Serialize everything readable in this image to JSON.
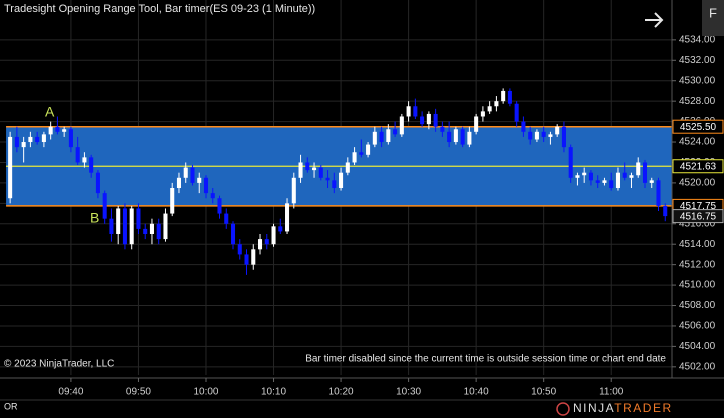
{
  "chart_data": {
    "type": "candlestick",
    "title": "Tradesight Opening Range Tool, Bar timer(ES 09-23 (1 Minute))",
    "x": [
      571,
      572,
      573,
      574,
      575,
      576,
      577,
      578,
      579,
      580,
      581,
      582,
      583,
      584,
      585,
      586,
      587,
      588,
      589,
      590,
      591,
      592,
      593,
      594,
      595,
      596,
      597,
      598,
      599,
      600,
      601,
      602,
      603,
      604,
      605,
      606,
      607,
      608,
      609,
      610,
      611,
      612,
      613,
      614,
      615,
      616,
      617,
      618,
      619,
      620,
      621,
      622,
      623,
      624,
      625,
      626,
      627,
      628,
      629,
      630,
      631,
      632,
      633,
      634,
      635,
      636,
      637,
      638,
      639,
      640,
      641,
      642,
      643,
      644,
      645,
      646,
      647,
      648,
      649,
      650,
      651,
      652,
      653,
      654,
      655,
      656,
      657,
      658,
      659,
      660,
      661,
      662,
      663,
      664,
      665,
      666,
      667,
      668
    ],
    "open": [
      4518.5,
      4524.5,
      4523.5,
      4524,
      4524.5,
      4524,
      4524.75,
      4525.5,
      4525,
      4525.25,
      4523.5,
      4522,
      4522.5,
      4521,
      4519,
      4516.5,
      4515,
      4517.5,
      4514,
      4517.5,
      4515.5,
      4515,
      4516,
      4514.5,
      4517,
      4519.5,
      4520.5,
      4521.5,
      4520,
      4520.5,
      4519,
      4518.5,
      4517,
      4516,
      4514,
      4513,
      4512,
      4513.5,
      4514.5,
      4514,
      4515.75,
      4515.25,
      4518,
      4520.5,
      4522,
      4521.25,
      4521.5,
      4520.5,
      4520.25,
      4519.5,
      4521,
      4522,
      4523,
      4522.75,
      4523.75,
      4525,
      4524,
      4525.25,
      4524.75,
      4526.5,
      4527.5,
      4526.5,
      4525.75,
      4526.75,
      4525.5,
      4525,
      4524,
      4525.25,
      4523.75,
      4525,
      4526.5,
      4527,
      4527.5,
      4528,
      4529,
      4527.75,
      4526,
      4525,
      4524.25,
      4525,
      4524.5,
      4524.75,
      4525.5,
      4523.5,
      4520.5,
      4520.75,
      4521,
      4520.25,
      4520,
      4520.25,
      4519.5,
      4521,
      4520.5,
      4520.75,
      4522,
      4520,
      4520.25,
      4517.75
    ],
    "high": [
      4525,
      4525.5,
      4524.5,
      4525,
      4525,
      4525,
      4526,
      4526.5,
      4525.5,
      4525.5,
      4524.5,
      4523,
      4522.75,
      4521.25,
      4519.25,
      4517.5,
      4517.75,
      4518,
      4517.75,
      4518,
      4516,
      4516.5,
      4516.5,
      4517.5,
      4520,
      4521,
      4522,
      4521.75,
      4521,
      4520.75,
      4519.5,
      4518.75,
      4517.5,
      4516.25,
      4514.5,
      4513.5,
      4514,
      4515,
      4515,
      4516,
      4516.5,
      4518.5,
      4521,
      4522.75,
      4522.5,
      4522,
      4521.75,
      4521.25,
      4521,
      4521.5,
      4522.5,
      4523.5,
      4524.25,
      4524,
      4525.5,
      4525.5,
      4525.75,
      4526,
      4526.75,
      4528,
      4528.25,
      4527,
      4527,
      4527.25,
      4526,
      4526,
      4525.5,
      4525.5,
      4525.5,
      4526.75,
      4527.5,
      4528,
      4528.5,
      4529.25,
      4529.25,
      4528,
      4526.5,
      4525.5,
      4525.25,
      4525.5,
      4525,
      4525.75,
      4526,
      4523.75,
      4521,
      4521.5,
      4521.25,
      4520.75,
      4520.5,
      4521,
      4521.5,
      4522,
      4521,
      4522.5,
      4522.25,
      4520.5,
      4520.5,
      4518
    ],
    "low": [
      4518,
      4523,
      4522,
      4523.5,
      4523.75,
      4523.5,
      4524.25,
      4524.75,
      4524.5,
      4523,
      4521.75,
      4521.5,
      4520.5,
      4518.5,
      4516,
      4514.25,
      4514,
      4513.5,
      4513.5,
      4515,
      4514.5,
      4514,
      4514,
      4514.25,
      4516.75,
      4519,
      4520,
      4519.75,
      4519,
      4518.5,
      4518,
      4516.5,
      4515.5,
      4513.5,
      4512.5,
      4511,
      4511.5,
      4513,
      4513.5,
      4513.75,
      4515,
      4515,
      4517.5,
      4520,
      4521,
      4520.5,
      4520.25,
      4519.5,
      4519,
      4519.25,
      4520.75,
      4521.75,
      4522.5,
      4522.5,
      4523.5,
      4523.5,
      4523.75,
      4524.5,
      4524.5,
      4526,
      4526.25,
      4525.5,
      4525.25,
      4525,
      4524.5,
      4523.5,
      4523.75,
      4523.5,
      4523.5,
      4524.75,
      4526,
      4526.75,
      4527,
      4527.75,
      4527.5,
      4525.5,
      4524.5,
      4523.75,
      4524,
      4524,
      4523.75,
      4524.5,
      4523,
      4520,
      4519.75,
      4520,
      4519.75,
      4519.5,
      4519.75,
      4519.25,
      4519.25,
      4520.25,
      4519.5,
      4520.5,
      4519.5,
      4519.5,
      4517.25,
      4516.25
    ],
    "close": [
      4524.5,
      4523.5,
      4524,
      4524.5,
      4524,
      4524.75,
      4525.5,
      4525,
      4525.25,
      4523.5,
      4522,
      4522.5,
      4521,
      4519,
      4516.5,
      4515,
      4517.5,
      4514,
      4517.5,
      4515.5,
      4515,
      4516,
      4514.5,
      4517,
      4519.5,
      4520.5,
      4521.5,
      4520,
      4520.5,
      4519,
      4518.5,
      4517,
      4516,
      4514,
      4513,
      4512,
      4513.5,
      4514.5,
      4514,
      4515.75,
      4515.25,
      4518,
      4520.5,
      4522,
      4521.25,
      4521.5,
      4520.5,
      4520.25,
      4519.5,
      4521,
      4522,
      4523,
      4522.75,
      4523.75,
      4525,
      4524,
      4525.25,
      4524.75,
      4526.5,
      4527.5,
      4526.5,
      4525.75,
      4526.75,
      4525.5,
      4525,
      4524,
      4525.25,
      4523.75,
      4525,
      4526.5,
      4527,
      4527.5,
      4528,
      4529,
      4527.75,
      4526,
      4525,
      4524.25,
      4525,
      4524.5,
      4524.75,
      4525.5,
      4523.5,
      4520.5,
      4520.75,
      4521,
      4520.25,
      4520,
      4520.25,
      4519.5,
      4521,
      4520.5,
      4520.75,
      4522,
      4520,
      4520.25,
      4517.75,
      4516.75
    ],
    "up_color": "#ffffff",
    "down_color": "#0a14ff",
    "xlim": [
      569.5,
      669
    ],
    "xticks": [
      {
        "value": 580,
        "label": "09:40"
      },
      {
        "value": 590,
        "label": "09:50"
      },
      {
        "value": 600,
        "label": "10:00"
      },
      {
        "value": 610,
        "label": "10:10"
      },
      {
        "value": 620,
        "label": "10:20"
      },
      {
        "value": 630,
        "label": "10:30"
      },
      {
        "value": 640,
        "label": "10:40"
      },
      {
        "value": 650,
        "label": "10:50"
      },
      {
        "value": 660,
        "label": "11:00"
      }
    ],
    "ylim": [
      4501.2,
      4537.9
    ],
    "yticks": [
      {
        "value": 4502,
        "label": "4502.00"
      },
      {
        "value": 4504,
        "label": "4504.00"
      },
      {
        "value": 4506,
        "label": "4506.00"
      },
      {
        "value": 4508,
        "label": "4508.00"
      },
      {
        "value": 4510,
        "label": "4510.00"
      },
      {
        "value": 4512,
        "label": "4512.00"
      },
      {
        "value": 4514,
        "label": "4514.00"
      },
      {
        "value": 4516,
        "label": "4516.00"
      },
      {
        "value": 4518,
        "label": "4518.00"
      },
      {
        "value": 4520,
        "label": "4520.00"
      },
      {
        "value": 4522,
        "label": "4522.00"
      },
      {
        "value": 4524,
        "label": "4524.00"
      },
      {
        "value": 4526,
        "label": "4526.00"
      },
      {
        "value": 4528,
        "label": "4528.00"
      },
      {
        "value": 4530,
        "label": "4530.00"
      },
      {
        "value": 4532,
        "label": "4532.00"
      },
      {
        "value": 4534,
        "label": "4534.00"
      }
    ],
    "grid": true,
    "opening_range": {
      "high": {
        "value": 4525.5,
        "label": "4525.50"
      },
      "mid": {
        "value": 4521.63,
        "label": "4521.63"
      },
      "low": {
        "value": 4517.75,
        "label": "4517.75"
      },
      "fill": "#1f66bd",
      "edge_color": "#ff8c1a",
      "mid_color": "#e8e83a"
    },
    "last_price": {
      "value": 4516.75,
      "label": "4516.75"
    },
    "annotations": [
      "A",
      "B"
    ],
    "copyright": "© 2023 NinjaTrader, LLC",
    "status": "Bar timer disabled since the current time is outside session time or chart end date",
    "panel_label": "OR"
  },
  "toolbar": {
    "button": "F"
  },
  "logo": {
    "prefix": "NINJA",
    "suffix": "TRADER"
  }
}
